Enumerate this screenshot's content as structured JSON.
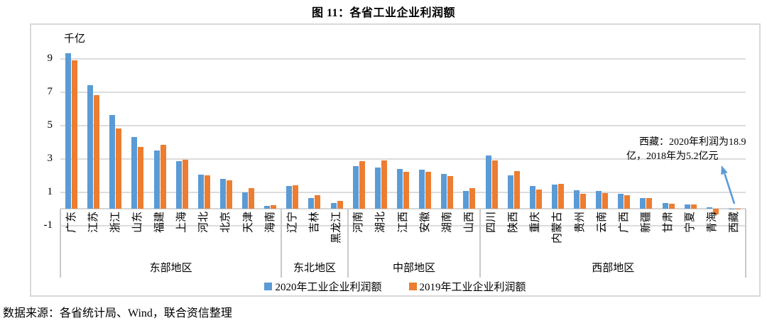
{
  "title": "图 11：各省工业企业利润额",
  "unit_label": "千亿",
  "source_note": "数据来源：各省统计局、Wind，联合资信整理",
  "annotation": {
    "line1": "西藏：2020年利润为18.9",
    "line2": "亿，2018年为5.2亿元",
    "arrow_color": "#5B9BD5"
  },
  "colors": {
    "series_2020": "#5B9BD5",
    "series_2019": "#ED7D31",
    "gridline": "#dcdcdc",
    "border": "#d9d9d9"
  },
  "chart_data": {
    "type": "bar",
    "title": "图 11：各省工业企业利润额",
    "ylabel": "千亿",
    "ylim": [
      -1,
      10
    ],
    "yticks": [
      9,
      7,
      5,
      3,
      1,
      -1
    ],
    "grid": true,
    "legend_position": "bottom",
    "categories": [
      "广东",
      "江苏",
      "浙江",
      "山东",
      "福建",
      "上海",
      "河北",
      "北京",
      "天津",
      "海南",
      "辽宁",
      "吉林",
      "黑龙江",
      "河南",
      "湖北",
      "江西",
      "安徽",
      "湖南",
      "山西",
      "四川",
      "陕西",
      "重庆",
      "内蒙古",
      "贵州",
      "云南",
      "广西",
      "新疆",
      "甘肃",
      "宁夏",
      "青海",
      "西藏"
    ],
    "groups": [
      {
        "label": "东部地区",
        "count": 10
      },
      {
        "label": "东北地区",
        "count": 3
      },
      {
        "label": "中部地区",
        "count": 6
      },
      {
        "label": "西部地区",
        "count": 12
      }
    ],
    "series": [
      {
        "name": "2020年工业企业利润额",
        "color": "#5B9BD5",
        "values": [
          9.3,
          7.4,
          5.6,
          4.3,
          3.5,
          2.85,
          2.05,
          1.8,
          1.0,
          0.15,
          1.35,
          0.65,
          0.35,
          2.55,
          2.45,
          2.4,
          2.35,
          2.1,
          1.05,
          3.2,
          2.0,
          1.35,
          1.45,
          1.1,
          1.05,
          0.9,
          0.65,
          0.35,
          0.25,
          0.1,
          0.02
        ]
      },
      {
        "name": "2019年工业企业利润额",
        "color": "#ED7D31",
        "values": [
          8.9,
          6.8,
          4.8,
          3.7,
          3.85,
          2.95,
          2.0,
          1.7,
          1.25,
          0.2,
          1.4,
          0.8,
          0.45,
          2.85,
          2.9,
          2.2,
          2.2,
          1.95,
          1.25,
          2.9,
          2.25,
          1.15,
          1.5,
          0.9,
          0.95,
          0.8,
          0.65,
          0.3,
          0.25,
          -0.35,
          0.01
        ]
      }
    ]
  }
}
